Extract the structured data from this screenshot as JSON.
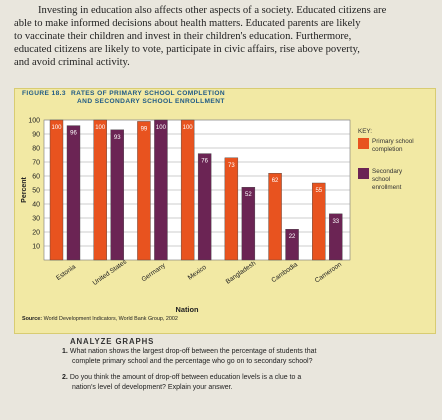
{
  "intro_text": [
    "Investing in education also affects other aspects of a society. Educated citizens are",
    "able to make informed decisions about health matters. Educated parents are likely",
    "to vaccinate their children and invest in their children's education. Furthermore,",
    "educated citizens are likely to vote, participate in civic affairs, rise above poverty,",
    "and avoid criminal activity."
  ],
  "figure": {
    "number": "FIGURE 18.3",
    "title_line1": "RATES OF PRIMARY SCHOOL COMPLETION",
    "title_line2": "AND SECONDARY SCHOOL ENROLLMENT",
    "key_title": "KEY:",
    "key_primary_line1": "Primary school",
    "key_primary_line2": "completion",
    "key_secondary_line1": "Secondary",
    "key_secondary_line2": "school",
    "key_secondary_line3": "enrollment",
    "source_label": "Source:",
    "source_text": " World Development Indicators, World Bank Group, 2002"
  },
  "chart_data": {
    "type": "bar",
    "title": "Rates of Primary School Completion and Secondary School Enrollment",
    "xlabel": "Nation",
    "ylabel": "Percent",
    "ylim": [
      0,
      100
    ],
    "yticks": [
      10,
      20,
      30,
      40,
      50,
      60,
      70,
      80,
      90,
      100
    ],
    "categories": [
      "Estonia",
      "United States",
      "Germany",
      "Mexico",
      "Bangladesh",
      "Cambodia",
      "Cameroon"
    ],
    "series": [
      {
        "name": "Primary school completion",
        "color": "#e8531f",
        "values": [
          100,
          100,
          99,
          100,
          73,
          62,
          55
        ]
      },
      {
        "name": "Secondary school enrollment",
        "color": "#6b2454",
        "values": [
          96,
          93,
          100,
          76,
          52,
          22,
          33
        ]
      }
    ],
    "grid": true,
    "legend": "right"
  },
  "analyze": {
    "heading": "ANALYZE GRAPHS",
    "q1_num": "1.",
    "q1_line1": "What nation shows the largest drop-off between the percentage of students that",
    "q1_line2": "complete primary school and the percentage who go on to secondary school?",
    "q2_num": "2.",
    "q2_line1": "Do you think the amount of drop-off between education levels is a clue to a",
    "q2_line2": "nation's level of development? Explain your answer."
  }
}
